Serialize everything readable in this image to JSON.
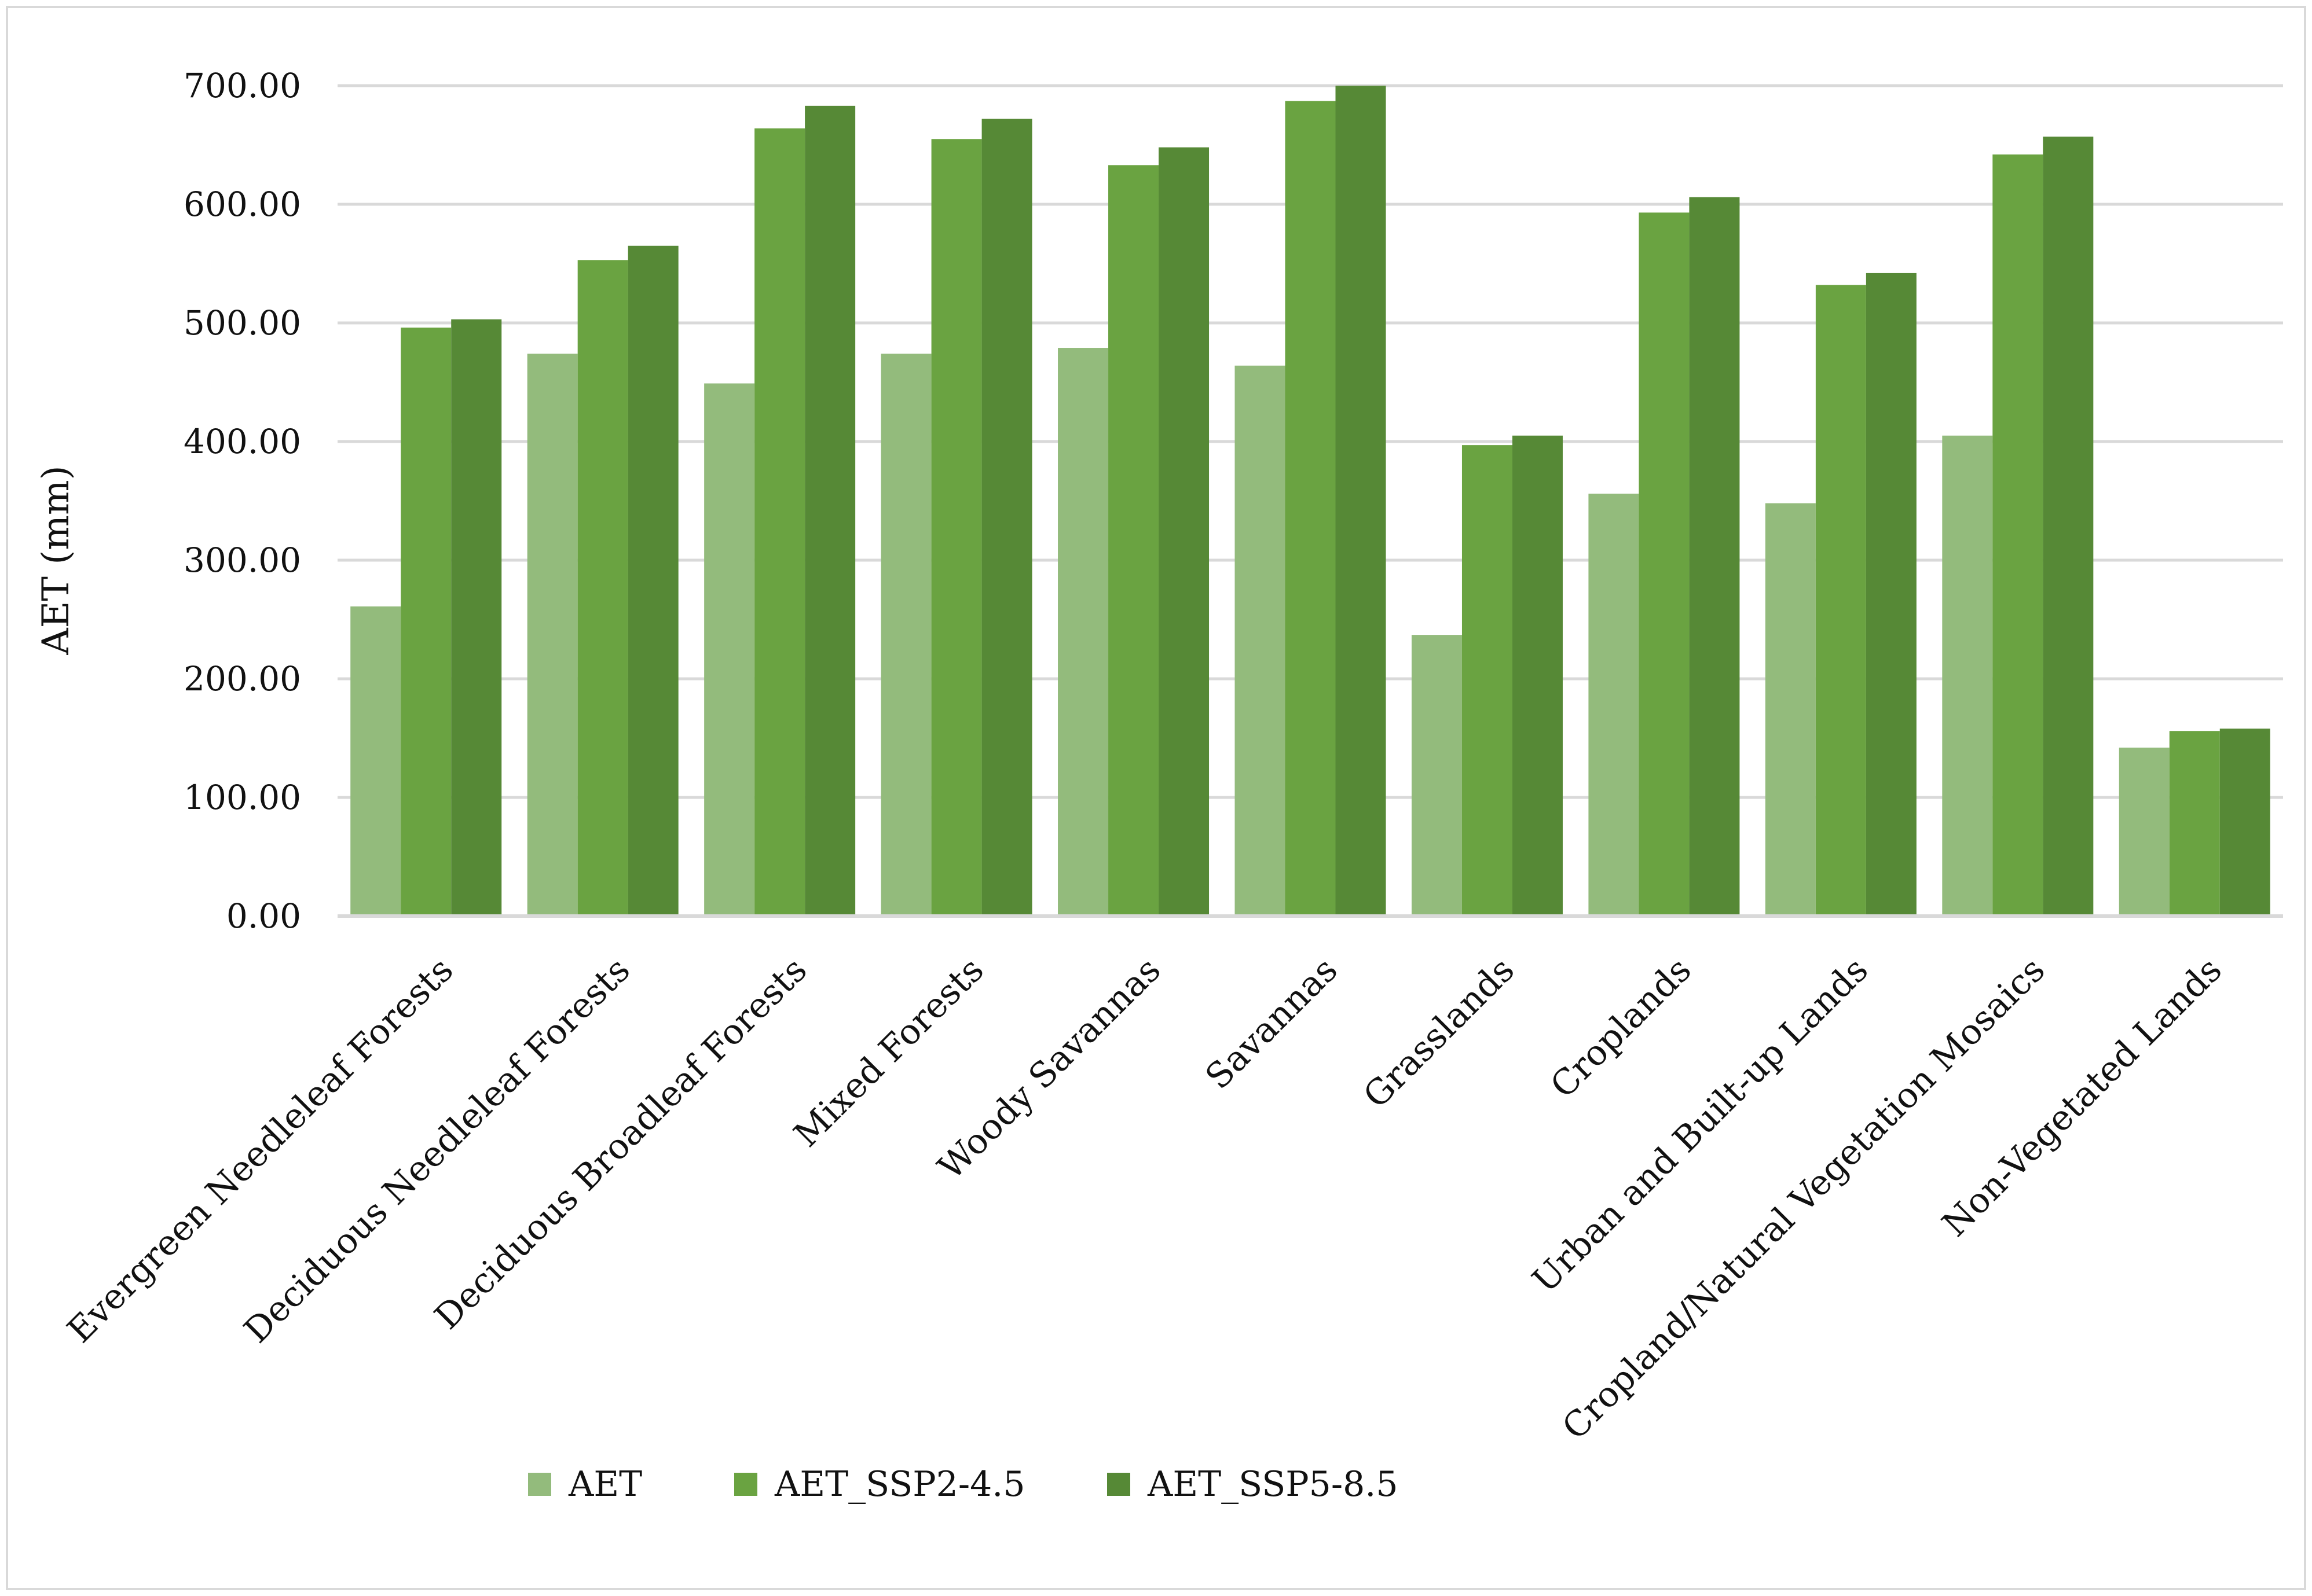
{
  "chart_data": {
    "type": "bar",
    "title": "",
    "xlabel": "",
    "ylabel": "AET (mm)",
    "ylim": [
      0,
      700
    ],
    "yticks": [
      "0.00",
      "100.00",
      "200.00",
      "300.00",
      "400.00",
      "500.00",
      "600.00",
      "700.00"
    ],
    "grid": true,
    "legend_position": "bottom",
    "categories": [
      "Evergreen Needleleaf Forests",
      "Deciduous Needleleaf Forests",
      "Deciduous Broadleaf Forests",
      "Mixed Forests",
      "Woody Savannas",
      "Savannas",
      "Grasslands",
      "Croplands",
      "Urban and Built-up Lands",
      "Cropland/Natural Vegetation Mosaics",
      "Non-Vegetated Lands"
    ],
    "series": [
      {
        "name": "AET",
        "color": "#93bb7c",
        "values": [
          261,
          474,
          449,
          474,
          479,
          464,
          237,
          356,
          348,
          405,
          142
        ]
      },
      {
        "name": "AET_SSP2-4.5",
        "color": "#6aa341",
        "values": [
          496,
          553,
          664,
          655,
          633,
          687,
          397,
          593,
          532,
          642,
          156
        ]
      },
      {
        "name": "AET_SSP5-8.5",
        "color": "#568936",
        "values": [
          503,
          565,
          683,
          672,
          648,
          700,
          405,
          606,
          542,
          657,
          158
        ]
      }
    ]
  }
}
